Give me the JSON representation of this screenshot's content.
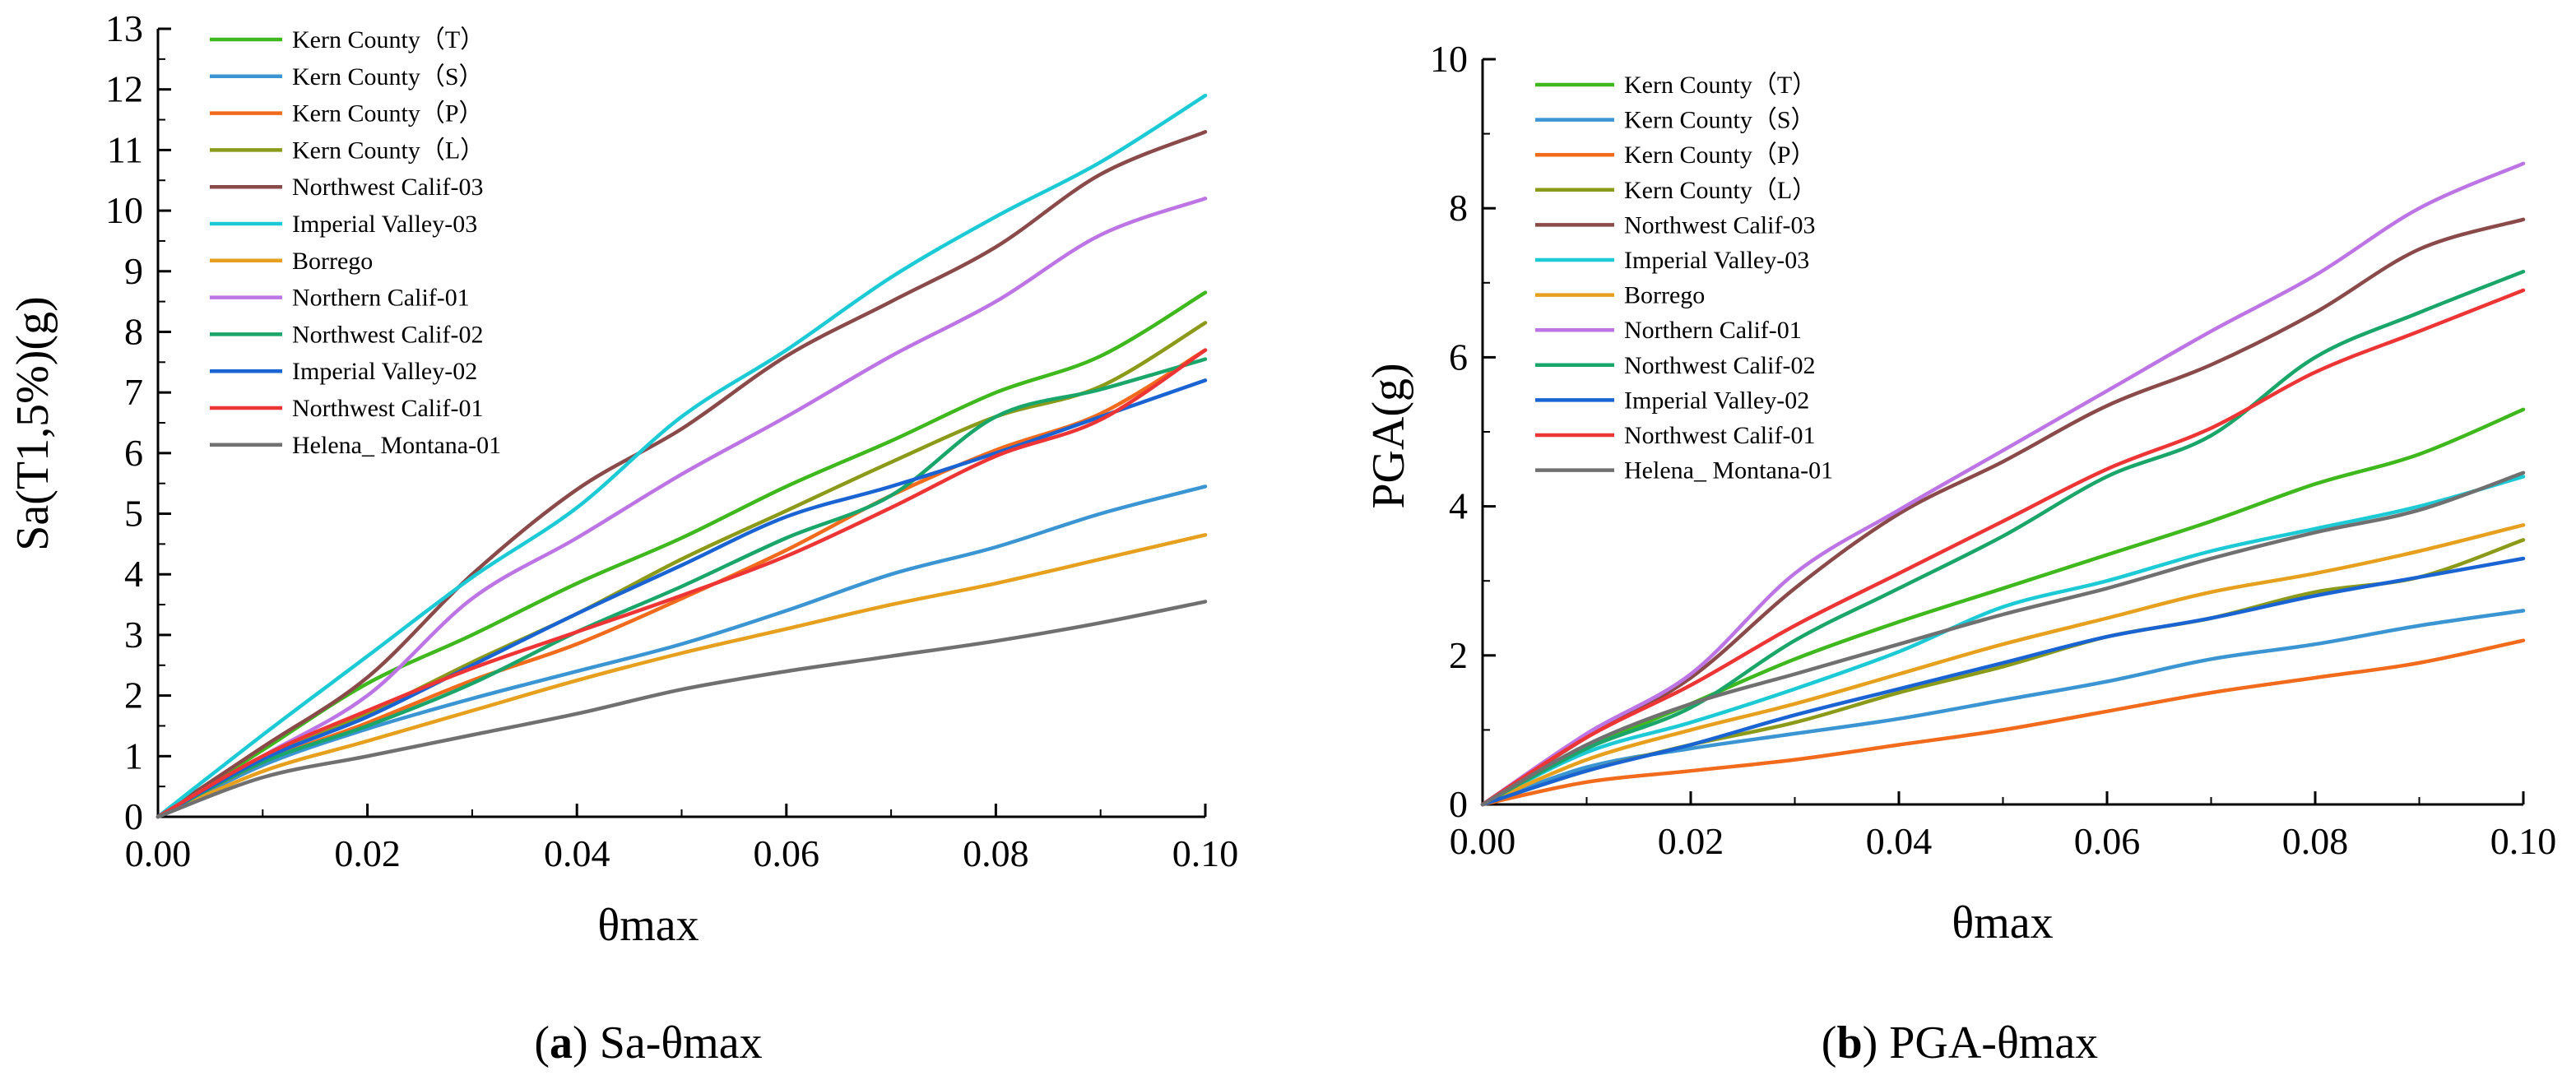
{
  "figure": {
    "captions": [
      {
        "letter": "a",
        "text": "Sa-θmax"
      },
      {
        "letter": "b",
        "text": "PGA-θmax"
      }
    ]
  },
  "legend_entries": [
    {
      "name": "Kern County（T）",
      "color": "#3fb81e"
    },
    {
      "name": "Kern County（S）",
      "color": "#3b95d3"
    },
    {
      "name": "Kern County（P）",
      "color": "#f26a1c"
    },
    {
      "name": "Kern County（L）",
      "color": "#8c9a1a"
    },
    {
      "name": "Northwest Calif-03",
      "color": "#8b4a4a"
    },
    {
      "name": "Imperial Valley-03",
      "color": "#1ccad6"
    },
    {
      "name": "Borrego",
      "color": "#e6a01e"
    },
    {
      "name": "Northern Calif-01",
      "color": "#bd74e4"
    },
    {
      "name": "Northwest Calif-02",
      "color": "#1aa66a"
    },
    {
      "name": "Imperial Valley-02",
      "color": "#1a63d2"
    },
    {
      "name": "Northwest Calif-01",
      "color": "#ee3535"
    },
    {
      "name": "Helena_ Montana-01",
      "color": "#707070"
    }
  ],
  "chart_data": [
    {
      "type": "line",
      "title": "(a) Sa-θmax",
      "xlabel": "θmax",
      "ylabel": "Sa(T1,5%)(g)",
      "xlim": [
        0,
        0.1
      ],
      "ylim": [
        0,
        13
      ],
      "xticks": [
        "0.00",
        "0.02",
        "0.04",
        "0.06",
        "0.08",
        "0.10"
      ],
      "yticks": [
        "0",
        "1",
        "2",
        "3",
        "4",
        "5",
        "6",
        "7",
        "8",
        "9",
        "10",
        "11",
        "12",
        "13"
      ],
      "legend_position": "top-left",
      "x": [
        0,
        0.01,
        0.02,
        0.03,
        0.04,
        0.05,
        0.06,
        0.07,
        0.08,
        0.09,
        0.1
      ],
      "series": [
        {
          "name": "Kern County（T）",
          "values": [
            0,
            1.1,
            2.2,
            3.0,
            3.85,
            4.6,
            5.45,
            6.2,
            7.0,
            7.6,
            8.65
          ]
        },
        {
          "name": "Kern County（S）",
          "values": [
            0,
            0.85,
            1.45,
            1.95,
            2.4,
            2.85,
            3.4,
            4.0,
            4.45,
            5.0,
            5.45
          ]
        },
        {
          "name": "Kern County（P）",
          "values": [
            0,
            0.9,
            1.55,
            2.25,
            2.85,
            3.6,
            4.4,
            5.3,
            6.05,
            6.65,
            7.7
          ]
        },
        {
          "name": "Kern County（L）",
          "values": [
            0,
            0.95,
            1.7,
            2.55,
            3.35,
            4.25,
            5.05,
            5.85,
            6.6,
            7.1,
            8.15
          ]
        },
        {
          "name": "Northwest Calif-03",
          "values": [
            0,
            1.15,
            2.3,
            4.0,
            5.4,
            6.4,
            7.6,
            8.5,
            9.4,
            10.6,
            11.3
          ]
        },
        {
          "name": "Imperial Valley-03",
          "values": [
            0,
            1.35,
            2.65,
            3.95,
            5.1,
            6.6,
            7.7,
            8.9,
            9.9,
            10.8,
            11.9
          ]
        },
        {
          "name": "Borrego",
          "values": [
            0,
            0.75,
            1.25,
            1.75,
            2.25,
            2.7,
            3.1,
            3.5,
            3.85,
            4.25,
            4.65
          ]
        },
        {
          "name": "Northern Calif-01",
          "values": [
            0,
            1.0,
            2.0,
            3.6,
            4.6,
            5.65,
            6.6,
            7.6,
            8.5,
            9.6,
            10.2
          ]
        },
        {
          "name": "Northwest Calif-02",
          "values": [
            0,
            0.9,
            1.5,
            2.2,
            3.05,
            3.8,
            4.6,
            5.3,
            6.6,
            7.05,
            7.55
          ]
        },
        {
          "name": "Imperial Valley-02",
          "values": [
            0,
            0.95,
            1.65,
            2.5,
            3.35,
            4.15,
            4.95,
            5.45,
            6.0,
            6.6,
            7.2
          ]
        },
        {
          "name": "Northwest Calif-01",
          "values": [
            0,
            1.0,
            1.75,
            2.45,
            3.05,
            3.65,
            4.3,
            5.1,
            5.95,
            6.55,
            7.7
          ]
        },
        {
          "name": "Helena_ Montana-01",
          "values": [
            0,
            0.65,
            1.0,
            1.35,
            1.7,
            2.1,
            2.4,
            2.65,
            2.9,
            3.2,
            3.55
          ]
        }
      ]
    },
    {
      "type": "line",
      "title": "(b) PGA-θmax",
      "xlabel": "θmax",
      "ylabel": "PGA(g)",
      "xlim": [
        0,
        0.1
      ],
      "ylim": [
        0,
        10
      ],
      "xticks": [
        "0.00",
        "0.02",
        "0.04",
        "0.06",
        "0.08",
        "0.10"
      ],
      "yticks": [
        "0",
        "2",
        "4",
        "6",
        "8",
        "10"
      ],
      "legend_position": "top-left",
      "x": [
        0,
        0.01,
        0.02,
        0.03,
        0.04,
        0.05,
        0.06,
        0.07,
        0.08,
        0.09,
        0.1
      ],
      "series": [
        {
          "name": "Kern County（T）",
          "values": [
            0,
            0.75,
            1.35,
            1.95,
            2.45,
            2.9,
            3.35,
            3.8,
            4.3,
            4.7,
            5.3
          ]
        },
        {
          "name": "Kern County（S）",
          "values": [
            0,
            0.5,
            0.75,
            0.95,
            1.15,
            1.4,
            1.65,
            1.95,
            2.15,
            2.4,
            2.6
          ]
        },
        {
          "name": "Kern County（P）",
          "values": [
            0,
            0.3,
            0.45,
            0.6,
            0.8,
            1.0,
            1.25,
            1.5,
            1.7,
            1.9,
            2.2
          ]
        },
        {
          "name": "Kern County（L）",
          "values": [
            0,
            0.45,
            0.8,
            1.1,
            1.5,
            1.85,
            2.25,
            2.5,
            2.85,
            3.05,
            3.55
          ]
        },
        {
          "name": "Northwest Calif-03",
          "values": [
            0,
            0.9,
            1.7,
            2.9,
            3.9,
            4.6,
            5.35,
            5.9,
            6.6,
            7.45,
            7.85
          ]
        },
        {
          "name": "Imperial Valley-03",
          "values": [
            0,
            0.7,
            1.1,
            1.55,
            2.05,
            2.65,
            3.0,
            3.4,
            3.7,
            4.0,
            4.4
          ]
        },
        {
          "name": "Borrego",
          "values": [
            0,
            0.6,
            1.0,
            1.35,
            1.75,
            2.15,
            2.5,
            2.85,
            3.1,
            3.4,
            3.75
          ]
        },
        {
          "name": "Northern Calif-01",
          "values": [
            0,
            0.95,
            1.75,
            3.1,
            3.95,
            4.75,
            5.55,
            6.35,
            7.1,
            8.0,
            8.6
          ]
        },
        {
          "name": "Northwest Calif-02",
          "values": [
            0,
            0.75,
            1.3,
            2.2,
            2.9,
            3.6,
            4.4,
            4.95,
            6.0,
            6.6,
            7.15
          ]
        },
        {
          "name": "Imperial Valley-02",
          "values": [
            0,
            0.45,
            0.8,
            1.2,
            1.55,
            1.9,
            2.25,
            2.5,
            2.8,
            3.05,
            3.3
          ]
        },
        {
          "name": "Northwest Calif-01",
          "values": [
            0,
            0.9,
            1.6,
            2.4,
            3.1,
            3.8,
            4.5,
            5.05,
            5.8,
            6.35,
            6.9
          ]
        },
        {
          "name": "Helena_ Montana-01",
          "values": [
            0,
            0.8,
            1.35,
            1.75,
            2.15,
            2.55,
            2.9,
            3.3,
            3.65,
            3.95,
            4.45
          ]
        }
      ]
    }
  ]
}
